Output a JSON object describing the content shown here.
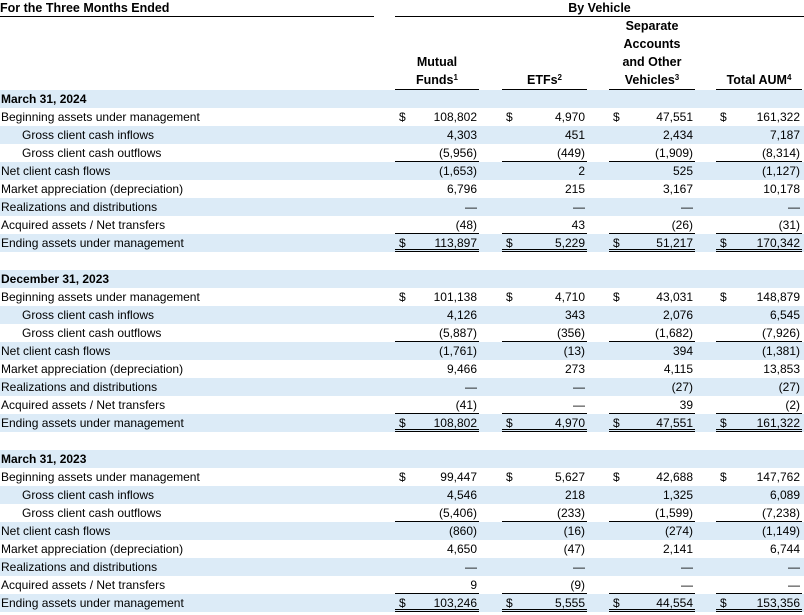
{
  "header": {
    "period_label": "For the Three Months Ended",
    "by_vehicle": "By Vehicle",
    "columns": [
      {
        "lines": [
          "Mutual",
          "Funds"
        ],
        "sup": "1"
      },
      {
        "lines": [
          "ETFs"
        ],
        "sup": "2"
      },
      {
        "lines": [
          "Separate",
          "Accounts",
          "and Other",
          "Vehicles"
        ],
        "sup": "3"
      },
      {
        "lines": [
          "Total AUM"
        ],
        "sup": "4"
      }
    ]
  },
  "currency_symbol": "$",
  "sections": [
    {
      "title": "March 31, 2024",
      "rows": [
        {
          "label": "Beginning assets under management",
          "values": [
            "108,802",
            "4,970",
            "47,551",
            "161,322"
          ]
        },
        {
          "label": "Gross client cash inflows",
          "values": [
            "4,303",
            "451",
            "2,434",
            "7,187"
          ]
        },
        {
          "label": "Gross client cash outflows",
          "values": [
            "(5,956)",
            "(449)",
            "(1,909)",
            "(8,314)"
          ]
        },
        {
          "label": "Net client cash flows",
          "values": [
            "(1,653)",
            "2",
            "525",
            "(1,127)"
          ]
        },
        {
          "label": "Market appreciation (depreciation)",
          "values": [
            "6,796",
            "215",
            "3,167",
            "10,178"
          ]
        },
        {
          "label": "Realizations and distributions",
          "values": [
            "—",
            "—",
            "—",
            "—"
          ]
        },
        {
          "label": "Acquired assets / Net transfers",
          "values": [
            "(48)",
            "43",
            "(26)",
            "(31)"
          ]
        },
        {
          "label": "Ending assets under management",
          "values": [
            "113,897",
            "5,229",
            "51,217",
            "170,342"
          ]
        }
      ]
    },
    {
      "title": "December 31, 2023",
      "rows": [
        {
          "label": "Beginning assets under management",
          "values": [
            "101,138",
            "4,710",
            "43,031",
            "148,879"
          ]
        },
        {
          "label": "Gross client cash inflows",
          "values": [
            "4,126",
            "343",
            "2,076",
            "6,545"
          ]
        },
        {
          "label": "Gross client cash outflows",
          "values": [
            "(5,887)",
            "(356)",
            "(1,682)",
            "(7,926)"
          ]
        },
        {
          "label": "Net client cash flows",
          "values": [
            "(1,761)",
            "(13)",
            "394",
            "(1,381)"
          ]
        },
        {
          "label": "Market appreciation (depreciation)",
          "values": [
            "9,466",
            "273",
            "4,115",
            "13,853"
          ]
        },
        {
          "label": "Realizations and distributions",
          "values": [
            "—",
            "—",
            "(27)",
            "(27)"
          ]
        },
        {
          "label": "Acquired assets / Net transfers",
          "values": [
            "(41)",
            "—",
            "39",
            "(2)"
          ]
        },
        {
          "label": "Ending assets under management",
          "values": [
            "108,802",
            "4,970",
            "47,551",
            "161,322"
          ]
        }
      ]
    },
    {
      "title": "March 31, 2023",
      "rows": [
        {
          "label": "Beginning assets under management",
          "values": [
            "99,447",
            "5,627",
            "42,688",
            "147,762"
          ]
        },
        {
          "label": "Gross client cash inflows",
          "values": [
            "4,546",
            "218",
            "1,325",
            "6,089"
          ]
        },
        {
          "label": "Gross client cash outflows",
          "values": [
            "(5,406)",
            "(233)",
            "(1,599)",
            "(7,238)"
          ]
        },
        {
          "label": "Net client cash flows",
          "values": [
            "(860)",
            "(16)",
            "(274)",
            "(1,149)"
          ]
        },
        {
          "label": "Market appreciation (depreciation)",
          "values": [
            "4,650",
            "(47)",
            "2,141",
            "6,744"
          ]
        },
        {
          "label": "Realizations and distributions",
          "values": [
            "—",
            "—",
            "—",
            "—"
          ]
        },
        {
          "label": "Acquired assets / Net transfers",
          "values": [
            "9",
            "(9)",
            "—",
            "—"
          ]
        },
        {
          "label": "Ending assets under management",
          "values": [
            "103,246",
            "5,555",
            "44,554",
            "153,356"
          ]
        }
      ]
    }
  ]
}
